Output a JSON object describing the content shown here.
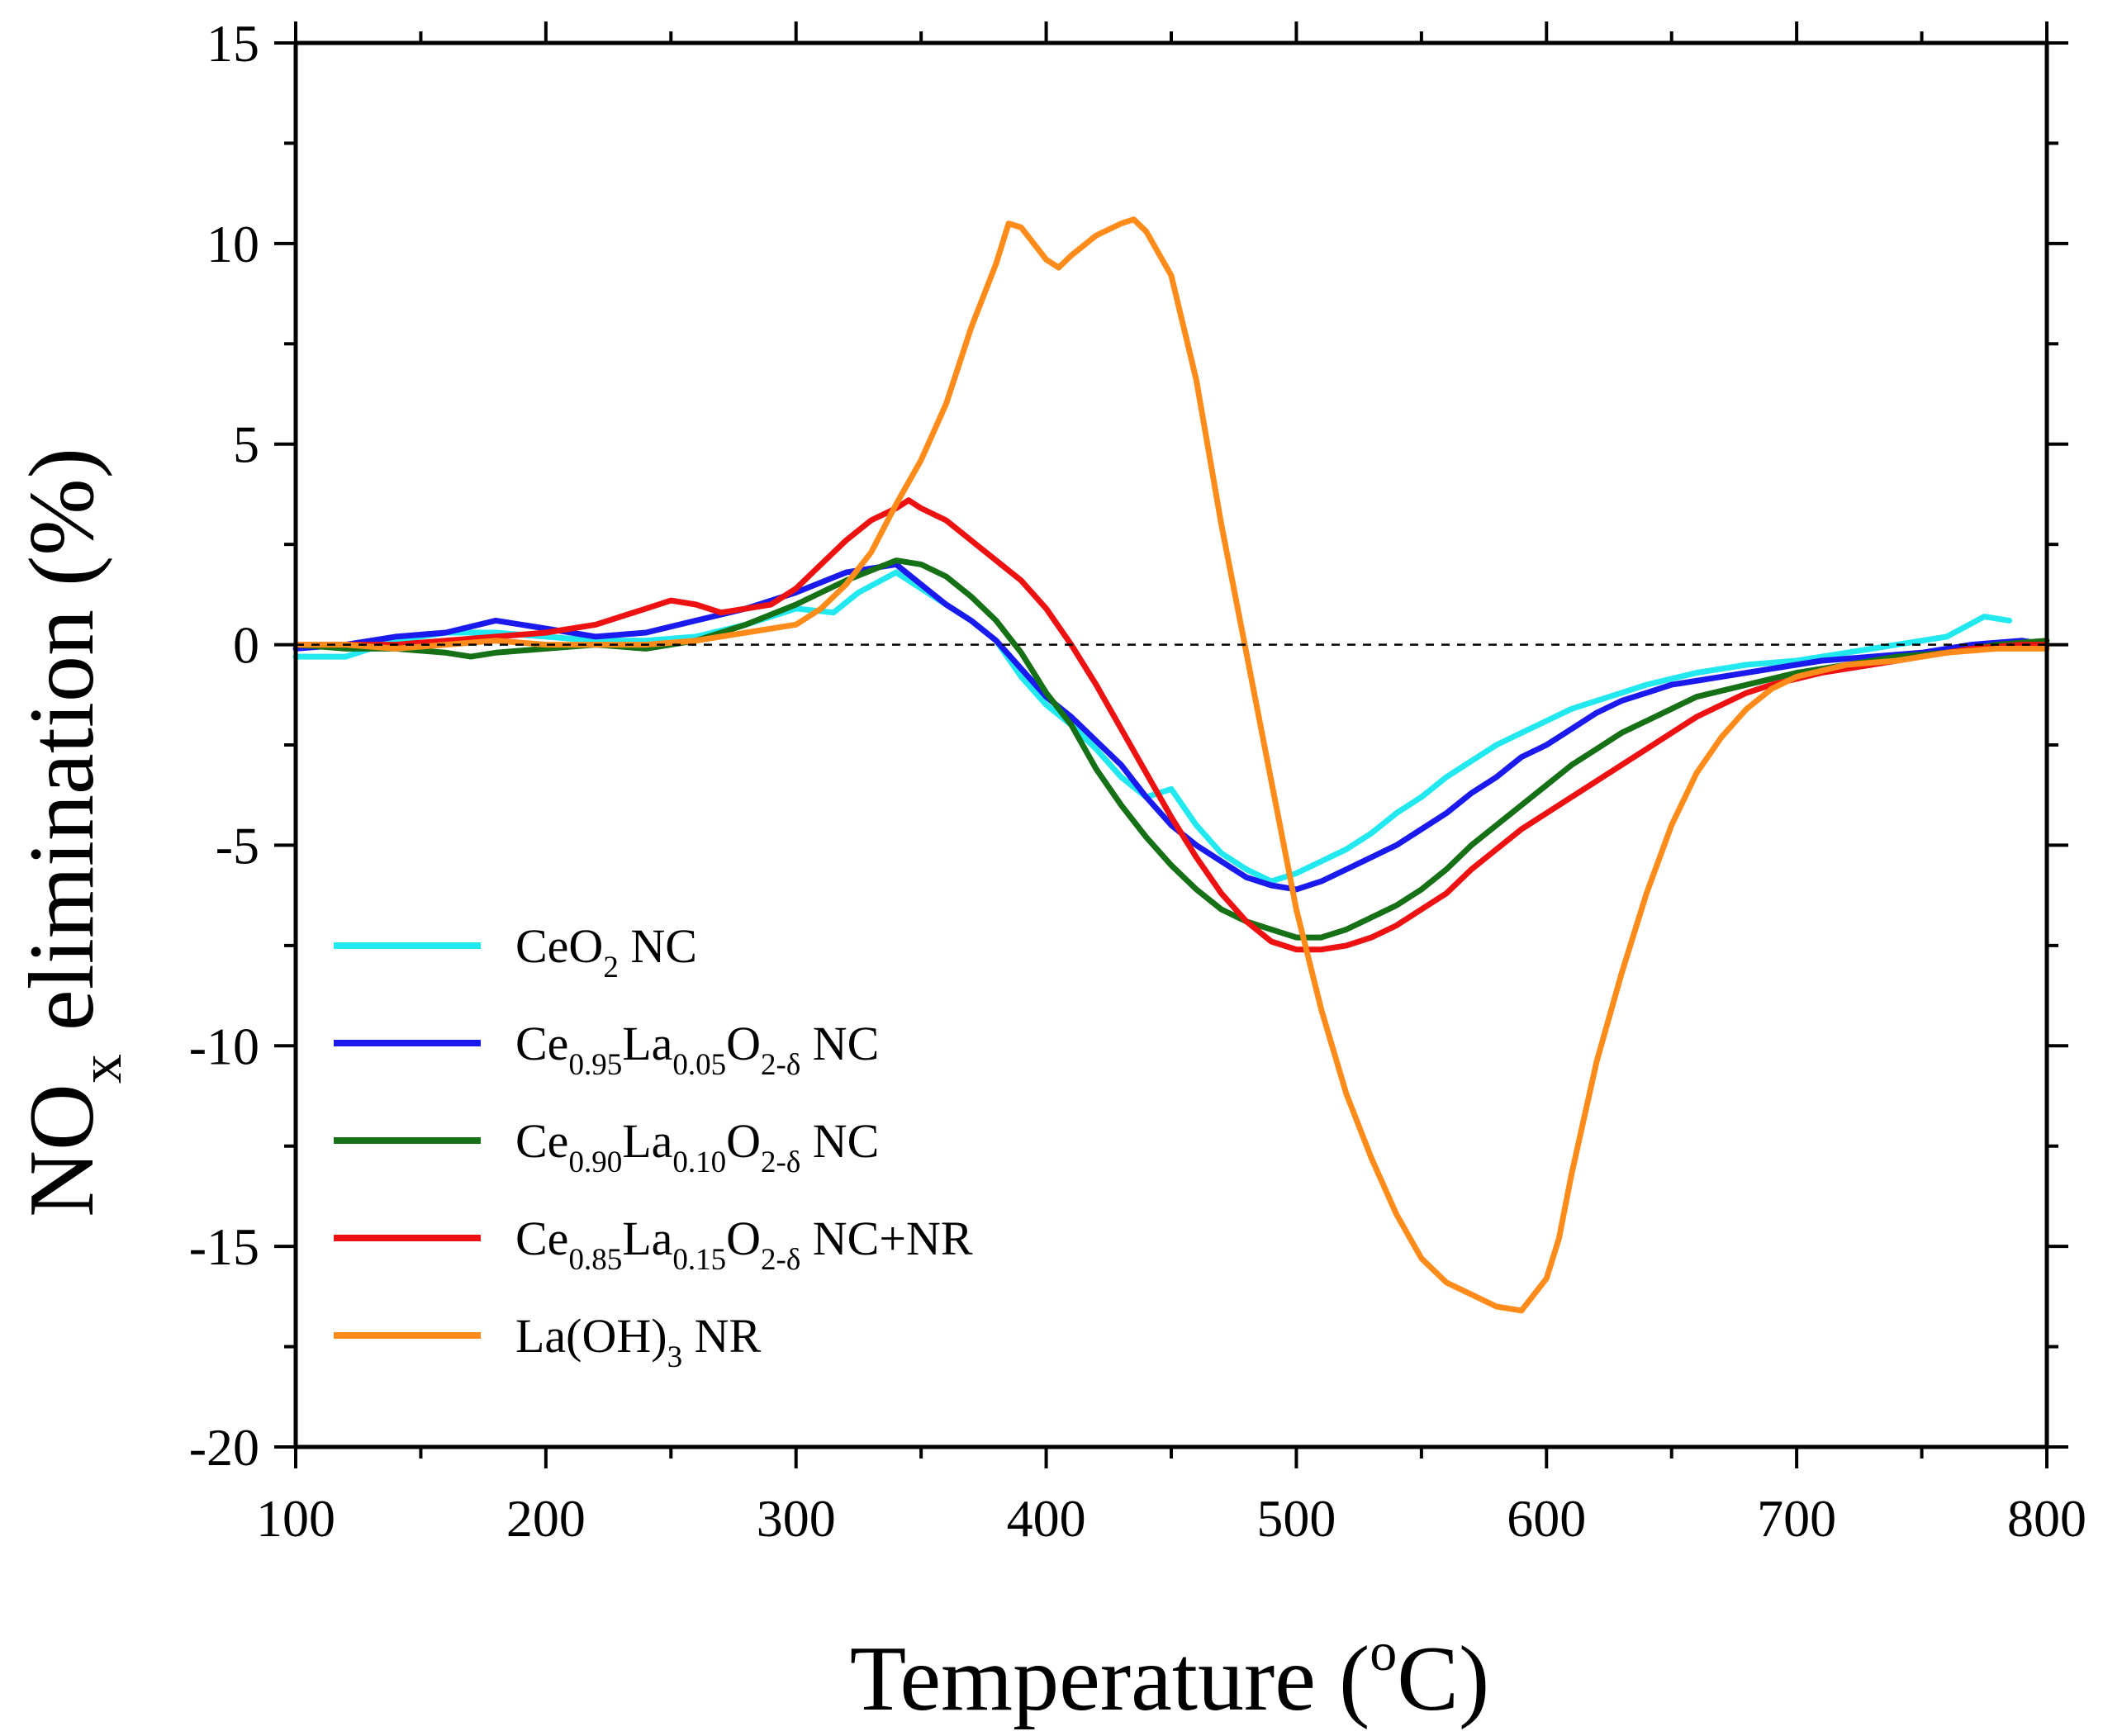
{
  "chart_data": {
    "type": "line",
    "title": "",
    "xlabel": {
      "main": "Temperature (",
      "sup": "o",
      "tail": "C)"
    },
    "ylabel": {
      "pre": "NO",
      "sub": "x",
      "post": " elimination (%)"
    },
    "xlim": [
      100,
      800
    ],
    "ylim": [
      -20,
      15
    ],
    "xticks": [
      100,
      200,
      300,
      400,
      500,
      600,
      700,
      800
    ],
    "yticks": [
      15,
      10,
      5,
      0,
      -5,
      -10,
      -15,
      -20
    ],
    "xtick_labels": [
      "100",
      "200",
      "300",
      "400",
      "500",
      "600",
      "700",
      "800"
    ],
    "ytick_labels": [
      "15",
      "10",
      "5",
      "0",
      "-5",
      "-10",
      "-15",
      "-20"
    ],
    "reference_line": {
      "y": 0,
      "style": "dashed"
    },
    "legend_position": "lower-left",
    "series": [
      {
        "name": "CeO2 NC",
        "color": "#22e8f0",
        "label_parts": [
          {
            "t": "CeO"
          },
          {
            "t": "2",
            "sub": true
          },
          {
            "t": " NC"
          }
        ],
        "points": [
          [
            100,
            -0.3
          ],
          [
            120,
            -0.3
          ],
          [
            140,
            0.1
          ],
          [
            160,
            0.3
          ],
          [
            180,
            0.3
          ],
          [
            200,
            0.2
          ],
          [
            220,
            0.1
          ],
          [
            240,
            0.1
          ],
          [
            260,
            0.2
          ],
          [
            280,
            0.5
          ],
          [
            300,
            0.9
          ],
          [
            315,
            0.8
          ],
          [
            325,
            1.3
          ],
          [
            340,
            1.8
          ],
          [
            350,
            1.4
          ],
          [
            360,
            1.0
          ],
          [
            370,
            0.6
          ],
          [
            380,
            0.1
          ],
          [
            390,
            -0.8
          ],
          [
            400,
            -1.5
          ],
          [
            410,
            -2.0
          ],
          [
            420,
            -2.6
          ],
          [
            430,
            -3.3
          ],
          [
            440,
            -3.8
          ],
          [
            450,
            -3.6
          ],
          [
            460,
            -4.5
          ],
          [
            470,
            -5.2
          ],
          [
            480,
            -5.6
          ],
          [
            490,
            -5.9
          ],
          [
            500,
            -5.7
          ],
          [
            510,
            -5.4
          ],
          [
            520,
            -5.1
          ],
          [
            530,
            -4.7
          ],
          [
            540,
            -4.2
          ],
          [
            550,
            -3.8
          ],
          [
            560,
            -3.3
          ],
          [
            570,
            -2.9
          ],
          [
            580,
            -2.5
          ],
          [
            590,
            -2.2
          ],
          [
            600,
            -1.9
          ],
          [
            610,
            -1.6
          ],
          [
            620,
            -1.4
          ],
          [
            630,
            -1.2
          ],
          [
            640,
            -1.0
          ],
          [
            660,
            -0.7
          ],
          [
            680,
            -0.5
          ],
          [
            700,
            -0.4
          ],
          [
            720,
            -0.2
          ],
          [
            740,
            0.0
          ],
          [
            760,
            0.2
          ],
          [
            775,
            0.7
          ],
          [
            785,
            0.6
          ]
        ]
      },
      {
        "name": "Ce0.95La0.05O2-δ NC",
        "color": "#1a1aee",
        "label_parts": [
          {
            "t": "Ce"
          },
          {
            "t": "0.95",
            "sub": true
          },
          {
            "t": "La"
          },
          {
            "t": "0.05",
            "sub": true
          },
          {
            "t": "O"
          },
          {
            "t": "2-δ",
            "sub": true
          },
          {
            "t": " NC"
          }
        ],
        "points": [
          [
            100,
            -0.1
          ],
          [
            120,
            0.0
          ],
          [
            140,
            0.2
          ],
          [
            160,
            0.3
          ],
          [
            180,
            0.6
          ],
          [
            200,
            0.4
          ],
          [
            220,
            0.2
          ],
          [
            240,
            0.3
          ],
          [
            260,
            0.6
          ],
          [
            280,
            0.9
          ],
          [
            300,
            1.3
          ],
          [
            320,
            1.8
          ],
          [
            340,
            2.0
          ],
          [
            350,
            1.5
          ],
          [
            360,
            1.0
          ],
          [
            370,
            0.6
          ],
          [
            380,
            0.1
          ],
          [
            390,
            -0.6
          ],
          [
            400,
            -1.3
          ],
          [
            410,
            -1.8
          ],
          [
            420,
            -2.4
          ],
          [
            430,
            -3.0
          ],
          [
            440,
            -3.8
          ],
          [
            450,
            -4.5
          ],
          [
            460,
            -5.0
          ],
          [
            470,
            -5.4
          ],
          [
            480,
            -5.8
          ],
          [
            490,
            -6.0
          ],
          [
            500,
            -6.1
          ],
          [
            510,
            -5.9
          ],
          [
            520,
            -5.6
          ],
          [
            530,
            -5.3
          ],
          [
            540,
            -5.0
          ],
          [
            550,
            -4.6
          ],
          [
            560,
            -4.2
          ],
          [
            570,
            -3.7
          ],
          [
            580,
            -3.3
          ],
          [
            590,
            -2.8
          ],
          [
            600,
            -2.5
          ],
          [
            610,
            -2.1
          ],
          [
            620,
            -1.7
          ],
          [
            630,
            -1.4
          ],
          [
            640,
            -1.2
          ],
          [
            650,
            -1.0
          ],
          [
            670,
            -0.8
          ],
          [
            690,
            -0.6
          ],
          [
            710,
            -0.4
          ],
          [
            730,
            -0.3
          ],
          [
            750,
            -0.2
          ],
          [
            770,
            0.0
          ],
          [
            790,
            0.1
          ],
          [
            800,
            0.0
          ]
        ]
      },
      {
        "name": "Ce0.90La0.10O2-δ NC",
        "color": "#167016",
        "label_parts": [
          {
            "t": "Ce"
          },
          {
            "t": "0.90",
            "sub": true
          },
          {
            "t": "La"
          },
          {
            "t": "0.10",
            "sub": true
          },
          {
            "t": "O"
          },
          {
            "t": "2-δ",
            "sub": true
          },
          {
            "t": " NC"
          }
        ],
        "points": [
          [
            100,
            0.0
          ],
          [
            120,
            -0.1
          ],
          [
            140,
            -0.1
          ],
          [
            160,
            -0.2
          ],
          [
            170,
            -0.3
          ],
          [
            180,
            -0.2
          ],
          [
            200,
            -0.1
          ],
          [
            220,
            0.0
          ],
          [
            240,
            -0.1
          ],
          [
            260,
            0.1
          ],
          [
            280,
            0.5
          ],
          [
            300,
            1.0
          ],
          [
            320,
            1.6
          ],
          [
            340,
            2.1
          ],
          [
            350,
            2.0
          ],
          [
            360,
            1.7
          ],
          [
            370,
            1.2
          ],
          [
            380,
            0.6
          ],
          [
            390,
            -0.2
          ],
          [
            400,
            -1.2
          ],
          [
            410,
            -2.0
          ],
          [
            420,
            -3.1
          ],
          [
            430,
            -4.0
          ],
          [
            440,
            -4.8
          ],
          [
            450,
            -5.5
          ],
          [
            460,
            -6.1
          ],
          [
            470,
            -6.6
          ],
          [
            480,
            -6.9
          ],
          [
            490,
            -7.1
          ],
          [
            500,
            -7.3
          ],
          [
            510,
            -7.3
          ],
          [
            520,
            -7.1
          ],
          [
            530,
            -6.8
          ],
          [
            540,
            -6.5
          ],
          [
            550,
            -6.1
          ],
          [
            560,
            -5.6
          ],
          [
            570,
            -5.0
          ],
          [
            580,
            -4.5
          ],
          [
            590,
            -4.0
          ],
          [
            600,
            -3.5
          ],
          [
            610,
            -3.0
          ],
          [
            620,
            -2.6
          ],
          [
            630,
            -2.2
          ],
          [
            640,
            -1.9
          ],
          [
            650,
            -1.6
          ],
          [
            660,
            -1.3
          ],
          [
            680,
            -1.0
          ],
          [
            700,
            -0.7
          ],
          [
            720,
            -0.5
          ],
          [
            740,
            -0.3
          ],
          [
            760,
            -0.2
          ],
          [
            780,
            0.0
          ],
          [
            800,
            0.1
          ]
        ]
      },
      {
        "name": "Ce0.85La0.15O2-δ NC+NR",
        "color": "#ee1111",
        "label_parts": [
          {
            "t": "Ce"
          },
          {
            "t": "0.85",
            "sub": true
          },
          {
            "t": "La"
          },
          {
            "t": "0.15",
            "sub": true
          },
          {
            "t": "O"
          },
          {
            "t": "2-δ",
            "sub": true
          },
          {
            "t": " NC+NR"
          }
        ],
        "points": [
          [
            100,
            0.0
          ],
          [
            120,
            0.0
          ],
          [
            140,
            0.0
          ],
          [
            160,
            0.1
          ],
          [
            180,
            0.2
          ],
          [
            200,
            0.3
          ],
          [
            220,
            0.5
          ],
          [
            240,
            0.9
          ],
          [
            250,
            1.1
          ],
          [
            260,
            1.0
          ],
          [
            270,
            0.8
          ],
          [
            280,
            0.9
          ],
          [
            290,
            1.0
          ],
          [
            300,
            1.4
          ],
          [
            310,
            2.0
          ],
          [
            320,
            2.6
          ],
          [
            330,
            3.1
          ],
          [
            340,
            3.4
          ],
          [
            345,
            3.6
          ],
          [
            350,
            3.4
          ],
          [
            360,
            3.1
          ],
          [
            370,
            2.6
          ],
          [
            380,
            2.1
          ],
          [
            390,
            1.6
          ],
          [
            400,
            0.9
          ],
          [
            410,
            0.0
          ],
          [
            420,
            -1.0
          ],
          [
            430,
            -2.1
          ],
          [
            440,
            -3.2
          ],
          [
            450,
            -4.3
          ],
          [
            460,
            -5.3
          ],
          [
            470,
            -6.2
          ],
          [
            480,
            -6.9
          ],
          [
            490,
            -7.4
          ],
          [
            500,
            -7.6
          ],
          [
            510,
            -7.6
          ],
          [
            520,
            -7.5
          ],
          [
            530,
            -7.3
          ],
          [
            540,
            -7.0
          ],
          [
            550,
            -6.6
          ],
          [
            560,
            -6.2
          ],
          [
            570,
            -5.6
          ],
          [
            580,
            -5.1
          ],
          [
            590,
            -4.6
          ],
          [
            600,
            -4.2
          ],
          [
            610,
            -3.8
          ],
          [
            620,
            -3.4
          ],
          [
            630,
            -3.0
          ],
          [
            640,
            -2.6
          ],
          [
            650,
            -2.2
          ],
          [
            660,
            -1.8
          ],
          [
            670,
            -1.5
          ],
          [
            680,
            -1.2
          ],
          [
            690,
            -1.0
          ],
          [
            710,
            -0.7
          ],
          [
            730,
            -0.5
          ],
          [
            750,
            -0.3
          ],
          [
            770,
            -0.1
          ],
          [
            790,
            0.0
          ],
          [
            800,
            0.0
          ]
        ]
      },
      {
        "name": "La(OH)3 NR",
        "color": "#ff8c1a",
        "label_parts": [
          {
            "t": "La(OH)"
          },
          {
            "t": "3",
            "sub": true
          },
          {
            "t": " NR"
          }
        ],
        "points": [
          [
            100,
            0.0
          ],
          [
            120,
            0.0
          ],
          [
            140,
            -0.1
          ],
          [
            160,
            0.0
          ],
          [
            180,
            0.1
          ],
          [
            200,
            0.0
          ],
          [
            220,
            0.0
          ],
          [
            240,
            0.0
          ],
          [
            260,
            0.1
          ],
          [
            280,
            0.3
          ],
          [
            300,
            0.5
          ],
          [
            310,
            0.9
          ],
          [
            320,
            1.5
          ],
          [
            330,
            2.3
          ],
          [
            340,
            3.5
          ],
          [
            350,
            4.6
          ],
          [
            360,
            6.0
          ],
          [
            370,
            7.9
          ],
          [
            380,
            9.5
          ],
          [
            385,
            10.5
          ],
          [
            390,
            10.4
          ],
          [
            400,
            9.6
          ],
          [
            405,
            9.4
          ],
          [
            410,
            9.7
          ],
          [
            420,
            10.2
          ],
          [
            430,
            10.5
          ],
          [
            435,
            10.6
          ],
          [
            440,
            10.3
          ],
          [
            450,
            9.2
          ],
          [
            460,
            6.6
          ],
          [
            470,
            3.0
          ],
          [
            480,
            -0.2
          ],
          [
            490,
            -3.4
          ],
          [
            500,
            -6.6
          ],
          [
            510,
            -9.1
          ],
          [
            520,
            -11.2
          ],
          [
            530,
            -12.8
          ],
          [
            540,
            -14.2
          ],
          [
            550,
            -15.3
          ],
          [
            560,
            -15.9
          ],
          [
            570,
            -16.2
          ],
          [
            580,
            -16.5
          ],
          [
            590,
            -16.6
          ],
          [
            600,
            -15.8
          ],
          [
            605,
            -14.8
          ],
          [
            610,
            -13.2
          ],
          [
            620,
            -10.4
          ],
          [
            630,
            -8.2
          ],
          [
            640,
            -6.2
          ],
          [
            650,
            -4.5
          ],
          [
            660,
            -3.2
          ],
          [
            670,
            -2.3
          ],
          [
            680,
            -1.6
          ],
          [
            690,
            -1.1
          ],
          [
            700,
            -0.8
          ],
          [
            720,
            -0.5
          ],
          [
            740,
            -0.4
          ],
          [
            760,
            -0.2
          ],
          [
            780,
            -0.1
          ],
          [
            800,
            -0.1
          ]
        ]
      }
    ]
  }
}
